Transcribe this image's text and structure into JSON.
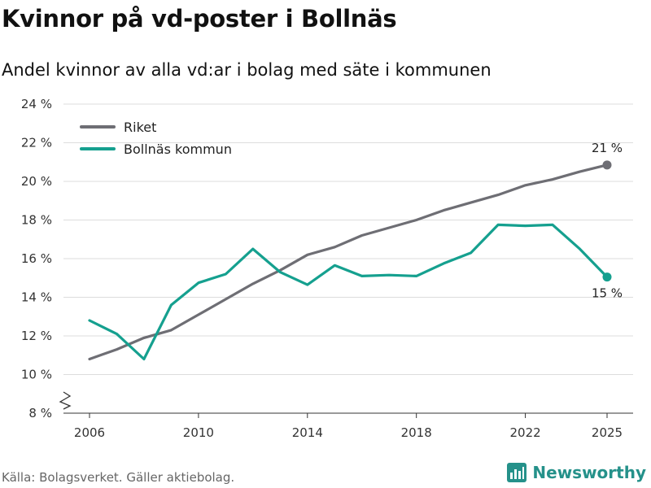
{
  "header": {
    "title": "Kvinnor på vd-poster i Bollnäs",
    "subtitle": "Andel kvinnor av alla vd:ar i bolag med säte i kommunen"
  },
  "footer": {
    "source": "Källa: Bolagsverket. Gäller aktiebolag.",
    "brand": "Newsworthy",
    "brand_icon": "bar-chart-logo-icon",
    "brand_color": "#25918a"
  },
  "chart_data": {
    "type": "line",
    "title": "Kvinnor på vd-poster i Bollnäs",
    "subtitle": "Andel kvinnor av alla vd:ar i bolag med säte i kommunen",
    "xlabel": "",
    "ylabel": "",
    "x": [
      2006,
      2007,
      2008,
      2009,
      2010,
      2011,
      2012,
      2013,
      2014,
      2015,
      2016,
      2017,
      2018,
      2019,
      2020,
      2021,
      2022,
      2023,
      2024,
      2025
    ],
    "xticks": [
      2006,
      2010,
      2014,
      2018,
      2022,
      2025
    ],
    "xtick_labels": [
      "2006",
      "2010",
      "2014",
      "2018",
      "2022",
      "2025"
    ],
    "ylim": [
      8,
      24
    ],
    "yticks": [
      8,
      10,
      12,
      14,
      16,
      18,
      20,
      22,
      24
    ],
    "ytick_labels": [
      "8 %",
      "10 %",
      "12 %",
      "14 %",
      "16 %",
      "18 %",
      "20 %",
      "22 %",
      "24 %"
    ],
    "y_axis_break": true,
    "grid": true,
    "legend_position": "top-left",
    "series": [
      {
        "name": "Riket",
        "color": "#6e6e74",
        "values": [
          10.8,
          11.3,
          11.9,
          12.3,
          13.1,
          13.9,
          14.7,
          15.4,
          16.2,
          16.6,
          17.2,
          17.6,
          18.0,
          18.5,
          18.9,
          19.3,
          19.8,
          20.1,
          20.5,
          20.85
        ],
        "end_label": "21 %"
      },
      {
        "name": "Bollnäs kommun",
        "color": "#15a08f",
        "values": [
          12.8,
          12.1,
          10.8,
          13.6,
          14.75,
          15.2,
          16.5,
          15.3,
          14.65,
          15.65,
          15.1,
          15.15,
          15.1,
          15.75,
          16.3,
          17.75,
          17.7,
          17.75,
          16.5,
          15.05
        ],
        "end_label": "15 %"
      }
    ]
  }
}
